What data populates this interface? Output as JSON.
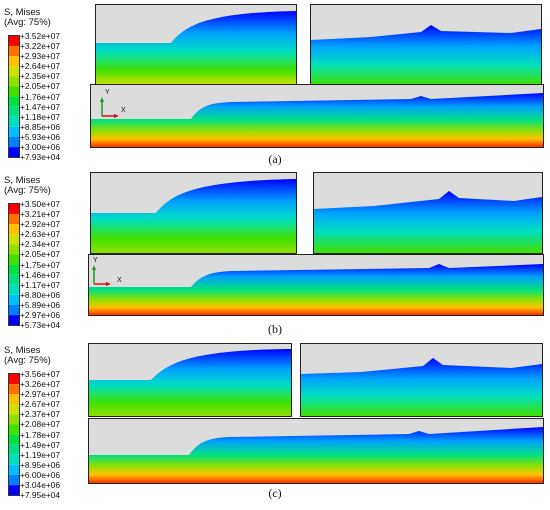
{
  "figures": [
    {
      "caption": "(a)",
      "legend": {
        "title_line1": "S, Mises",
        "title_line2": "(Avg: 75%)",
        "ticks": [
          "+3.52e+07",
          "+3.22e+07",
          "+2.93e+07",
          "+2.64e+07",
          "+2.35e+07",
          "+2.05e+07",
          "+1.76e+07",
          "+1.47e+07",
          "+1.18e+07",
          "+8.85e+06",
          "+5.93e+06",
          "+3.00e+06",
          "+7.93e+04"
        ]
      },
      "axis": {
        "y": "Y",
        "x": "X"
      }
    },
    {
      "caption": "(b)",
      "legend": {
        "title_line1": "S, Mises",
        "title_line2": "(Avg: 75%)",
        "ticks": [
          "+3.50e+07",
          "+3.21e+07",
          "+2.92e+07",
          "+2.63e+07",
          "+2.34e+07",
          "+2.05e+07",
          "+1.75e+07",
          "+1.46e+07",
          "+1.17e+07",
          "+8.80e+06",
          "+5.89e+06",
          "+2.97e+06",
          "+5.73e+04"
        ]
      },
      "axis": {
        "y": "Y",
        "x": "X"
      }
    },
    {
      "caption": "(c)",
      "legend": {
        "title_line1": "S, Mises",
        "title_line2": "(Avg: 75%)",
        "ticks": [
          "+3.56e+07",
          "+3.26e+07",
          "+2.97e+07",
          "+2.67e+07",
          "+2.37e+07",
          "+2.08e+07",
          "+1.78e+07",
          "+1.49e+07",
          "+1.19e+07",
          "+8.95e+06",
          "+6.00e+06",
          "+3.04e+06",
          "+7.95e+04"
        ]
      },
      "axis": {
        "y": "",
        "x": ""
      }
    }
  ],
  "colors": {
    "colormap": [
      "#0000ff",
      "#0040ff",
      "#0080ff",
      "#00c0ff",
      "#00e0c0",
      "#00e080",
      "#00e040",
      "#40e000",
      "#90e000",
      "#d0e000",
      "#ffc000",
      "#ff7000",
      "#ff0000"
    ],
    "background": "#dcdcdc"
  }
}
